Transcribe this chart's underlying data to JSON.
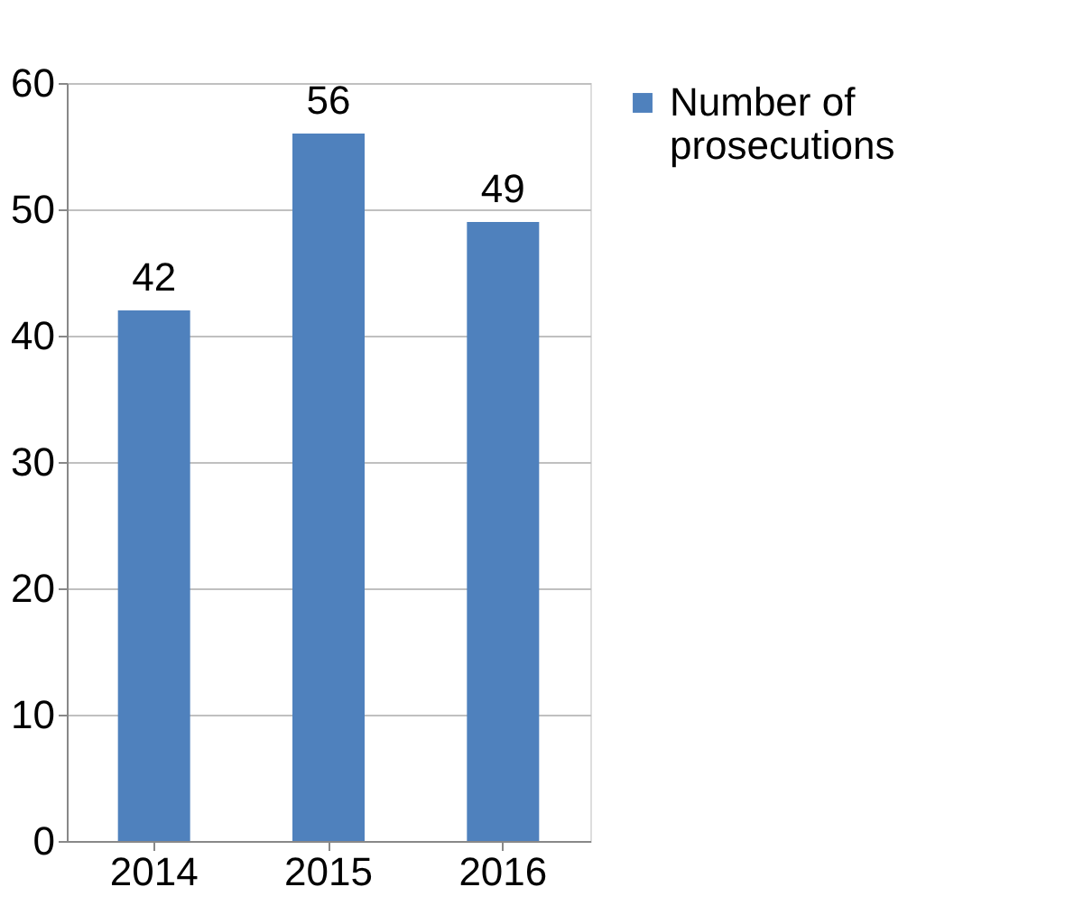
{
  "chart_data": {
    "type": "bar",
    "categories": [
      "2014",
      "2015",
      "2016"
    ],
    "series": [
      {
        "name": "Number of prosecutions",
        "color": "#4f81bd",
        "values": [
          42,
          56,
          49
        ]
      }
    ],
    "ylim": [
      0,
      60
    ],
    "yticks": [
      0,
      10,
      20,
      30,
      40,
      50,
      60
    ],
    "grid": "y",
    "legend": "right",
    "data_labels": true
  }
}
